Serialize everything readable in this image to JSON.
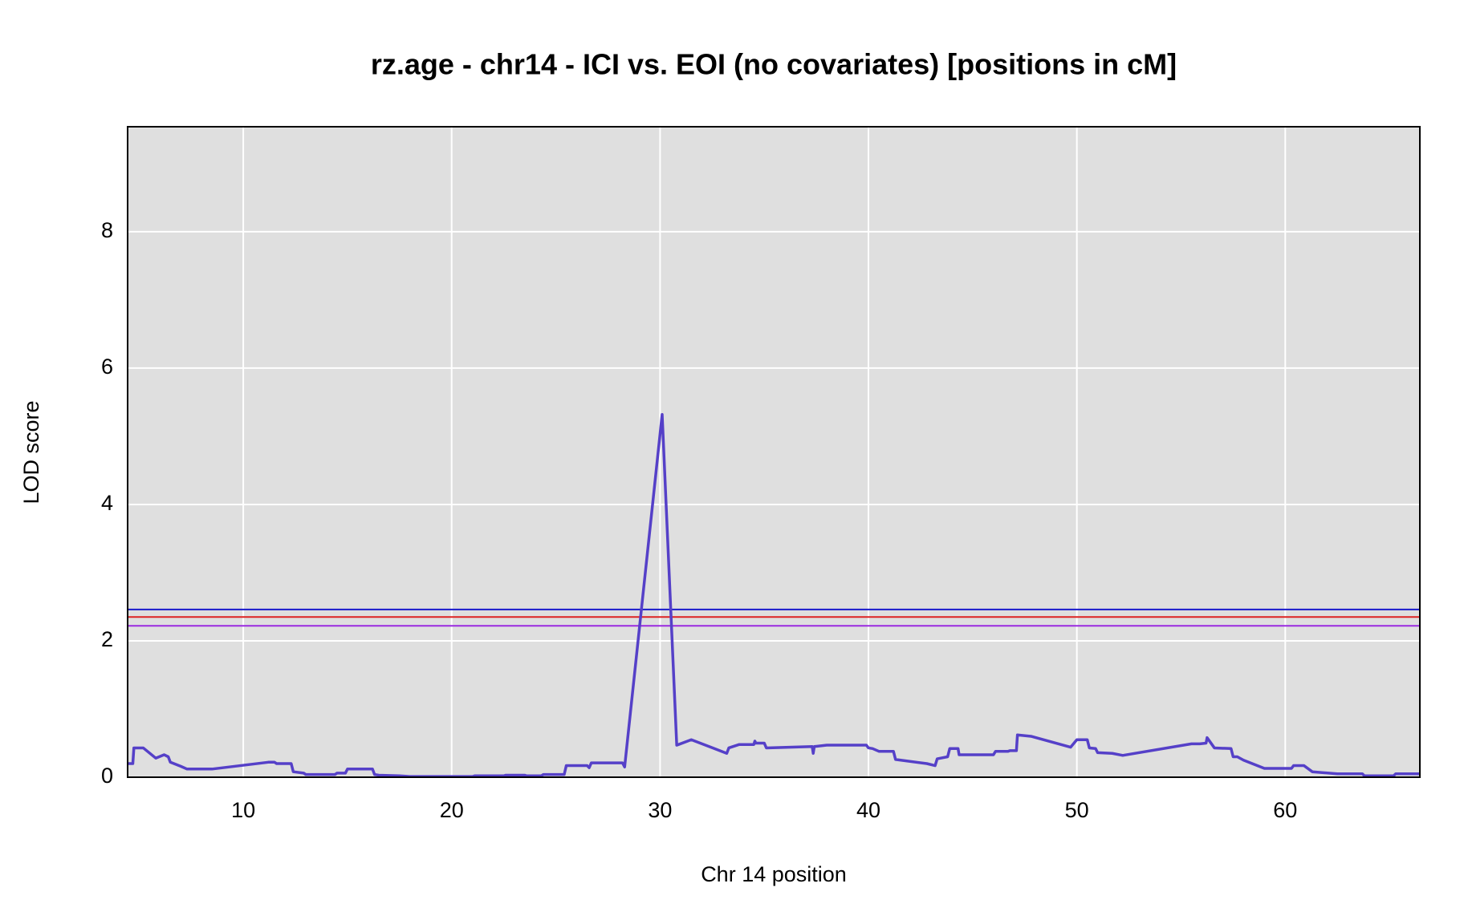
{
  "chart_data": {
    "type": "line",
    "title": "rz.age - chr14 - ICI vs. EOI (no covariates) [positions in cM]",
    "x_label": "Chr 14 position",
    "y_label": "LOD score",
    "xlim": [
      4.45,
      66.46
    ],
    "ylim": [
      0,
      9.54
    ],
    "xticks": [
      10,
      20,
      30,
      40,
      50,
      60
    ],
    "yticks": [
      0,
      2,
      4,
      6,
      8
    ],
    "grid": true,
    "background": "#dfdfdf",
    "hlines": [
      {
        "value": 2.46,
        "color": "#1a1acc"
      },
      {
        "value": 2.35,
        "color": "#dd2222"
      },
      {
        "value": 2.22,
        "color": "#9a2ae0"
      }
    ],
    "x": [
      4.45,
      4.7,
      4.75,
      5.2,
      5.8,
      6.2,
      6.4,
      6.5,
      7,
      7.3,
      8.5,
      11.2,
      11.5,
      11.6,
      12.3,
      12.4,
      12.9,
      13,
      14.4,
      14.5,
      14.9,
      15,
      16.2,
      16.3,
      16.5,
      17.5,
      18,
      21,
      21.1,
      22.5,
      22.6,
      23.5,
      23.6,
      24.3,
      24.4,
      25.4,
      25.5,
      26.5,
      26.6,
      26.7,
      28.2,
      28.3,
      30.1,
      30.8,
      31.5,
      33.2,
      33.3,
      33.8,
      34.5,
      34.55,
      34.6,
      35,
      35.1,
      37.3,
      37.35,
      37.4,
      38,
      39.9,
      40,
      40.2,
      40.5,
      41.2,
      41.3,
      42.8,
      43.2,
      43.3,
      43.8,
      43.9,
      44.3,
      44.35,
      46,
      46.1,
      46.7,
      46.8,
      47.1,
      47.15,
      47.8,
      49.7,
      50,
      50.5,
      50.6,
      50.9,
      51,
      51.7,
      52.2,
      55.5,
      55.9,
      56.2,
      56.25,
      56.6,
      57.4,
      57.5,
      57.7,
      58,
      59,
      60.3,
      60.4,
      60.9,
      61.3,
      62.5,
      63.7,
      63.8,
      65.2,
      65.3,
      66.46
    ],
    "series": [
      {
        "color": "#5540c8",
        "values": [
          0.2,
          0.2,
          0.43,
          0.43,
          0.28,
          0.33,
          0.3,
          0.22,
          0.16,
          0.12,
          0.12,
          0.22,
          0.22,
          0.2,
          0.2,
          0.08,
          0.06,
          0.04,
          0.04,
          0.06,
          0.06,
          0.12,
          0.12,
          0.04,
          0.03,
          0.02,
          0.01,
          0.01,
          0.02,
          0.02,
          0.03,
          0.03,
          0.02,
          0.02,
          0.04,
          0.04,
          0.17,
          0.17,
          0.14,
          0.21,
          0.21,
          0.15,
          5.32,
          0.47,
          0.55,
          0.35,
          0.43,
          0.48,
          0.48,
          0.53,
          0.5,
          0.5,
          0.43,
          0.45,
          0.35,
          0.45,
          0.47,
          0.47,
          0.43,
          0.42,
          0.38,
          0.38,
          0.26,
          0.2,
          0.17,
          0.27,
          0.3,
          0.42,
          0.42,
          0.33,
          0.33,
          0.38,
          0.38,
          0.39,
          0.39,
          0.62,
          0.6,
          0.44,
          0.55,
          0.55,
          0.43,
          0.42,
          0.36,
          0.35,
          0.32,
          0.49,
          0.49,
          0.5,
          0.58,
          0.43,
          0.42,
          0.3,
          0.3,
          0.25,
          0.13,
          0.13,
          0.17,
          0.17,
          0.08,
          0.05,
          0.05,
          0.02,
          0.02,
          0.05,
          0.05
        ]
      }
    ]
  }
}
